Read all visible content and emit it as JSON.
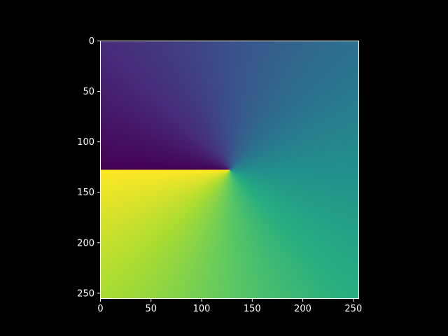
{
  "chart_data": {
    "type": "heatmap",
    "title": "",
    "xlabel": "",
    "ylabel": "",
    "image_width": 256,
    "image_height": 256,
    "value_function": "angle of (x - 128, y - 128) around center, discontinuity along left horizontal",
    "colormap": "viridis",
    "xlim": [
      0,
      256
    ],
    "ylim": [
      256,
      0
    ],
    "x_ticks": [
      0,
      50,
      100,
      150,
      200,
      250
    ],
    "y_ticks": [
      0,
      50,
      100,
      150,
      200,
      250
    ],
    "x_tick_labels": [
      "0",
      "50",
      "100",
      "150",
      "200",
      "250"
    ],
    "y_tick_labels": [
      "0",
      "50",
      "100",
      "150",
      "200",
      "250"
    ],
    "center": [
      128,
      128
    ],
    "grid": false,
    "legend": "none"
  },
  "colors": {
    "background": "#000000",
    "axes_spine": "#ffffff",
    "tick_text": "#ffffff"
  }
}
